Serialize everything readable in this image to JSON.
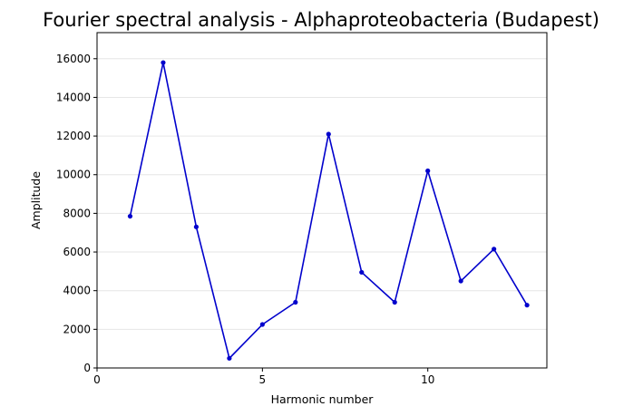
{
  "chart_data": {
    "type": "line",
    "title": "Fourier spectral analysis - Alphaproteobacteria (Budapest)",
    "xlabel": "Harmonic number",
    "ylabel": "Amplitude",
    "xlim": [
      0,
      13.6
    ],
    "ylim": [
      0,
      17350
    ],
    "xticks": [
      0,
      5,
      10
    ],
    "yticks": [
      0,
      2000,
      4000,
      6000,
      8000,
      10000,
      12000,
      14000,
      16000
    ],
    "grid": "horizontal, light",
    "series": [
      {
        "color": "#0000cc",
        "x": [
          1,
          2,
          3,
          4,
          5,
          6,
          7,
          8,
          9,
          10,
          11,
          12,
          13
        ],
        "y": [
          7850,
          15800,
          7300,
          500,
          2250,
          3400,
          12100,
          4950,
          3400,
          10200,
          4500,
          6150,
          3250
        ]
      }
    ]
  }
}
